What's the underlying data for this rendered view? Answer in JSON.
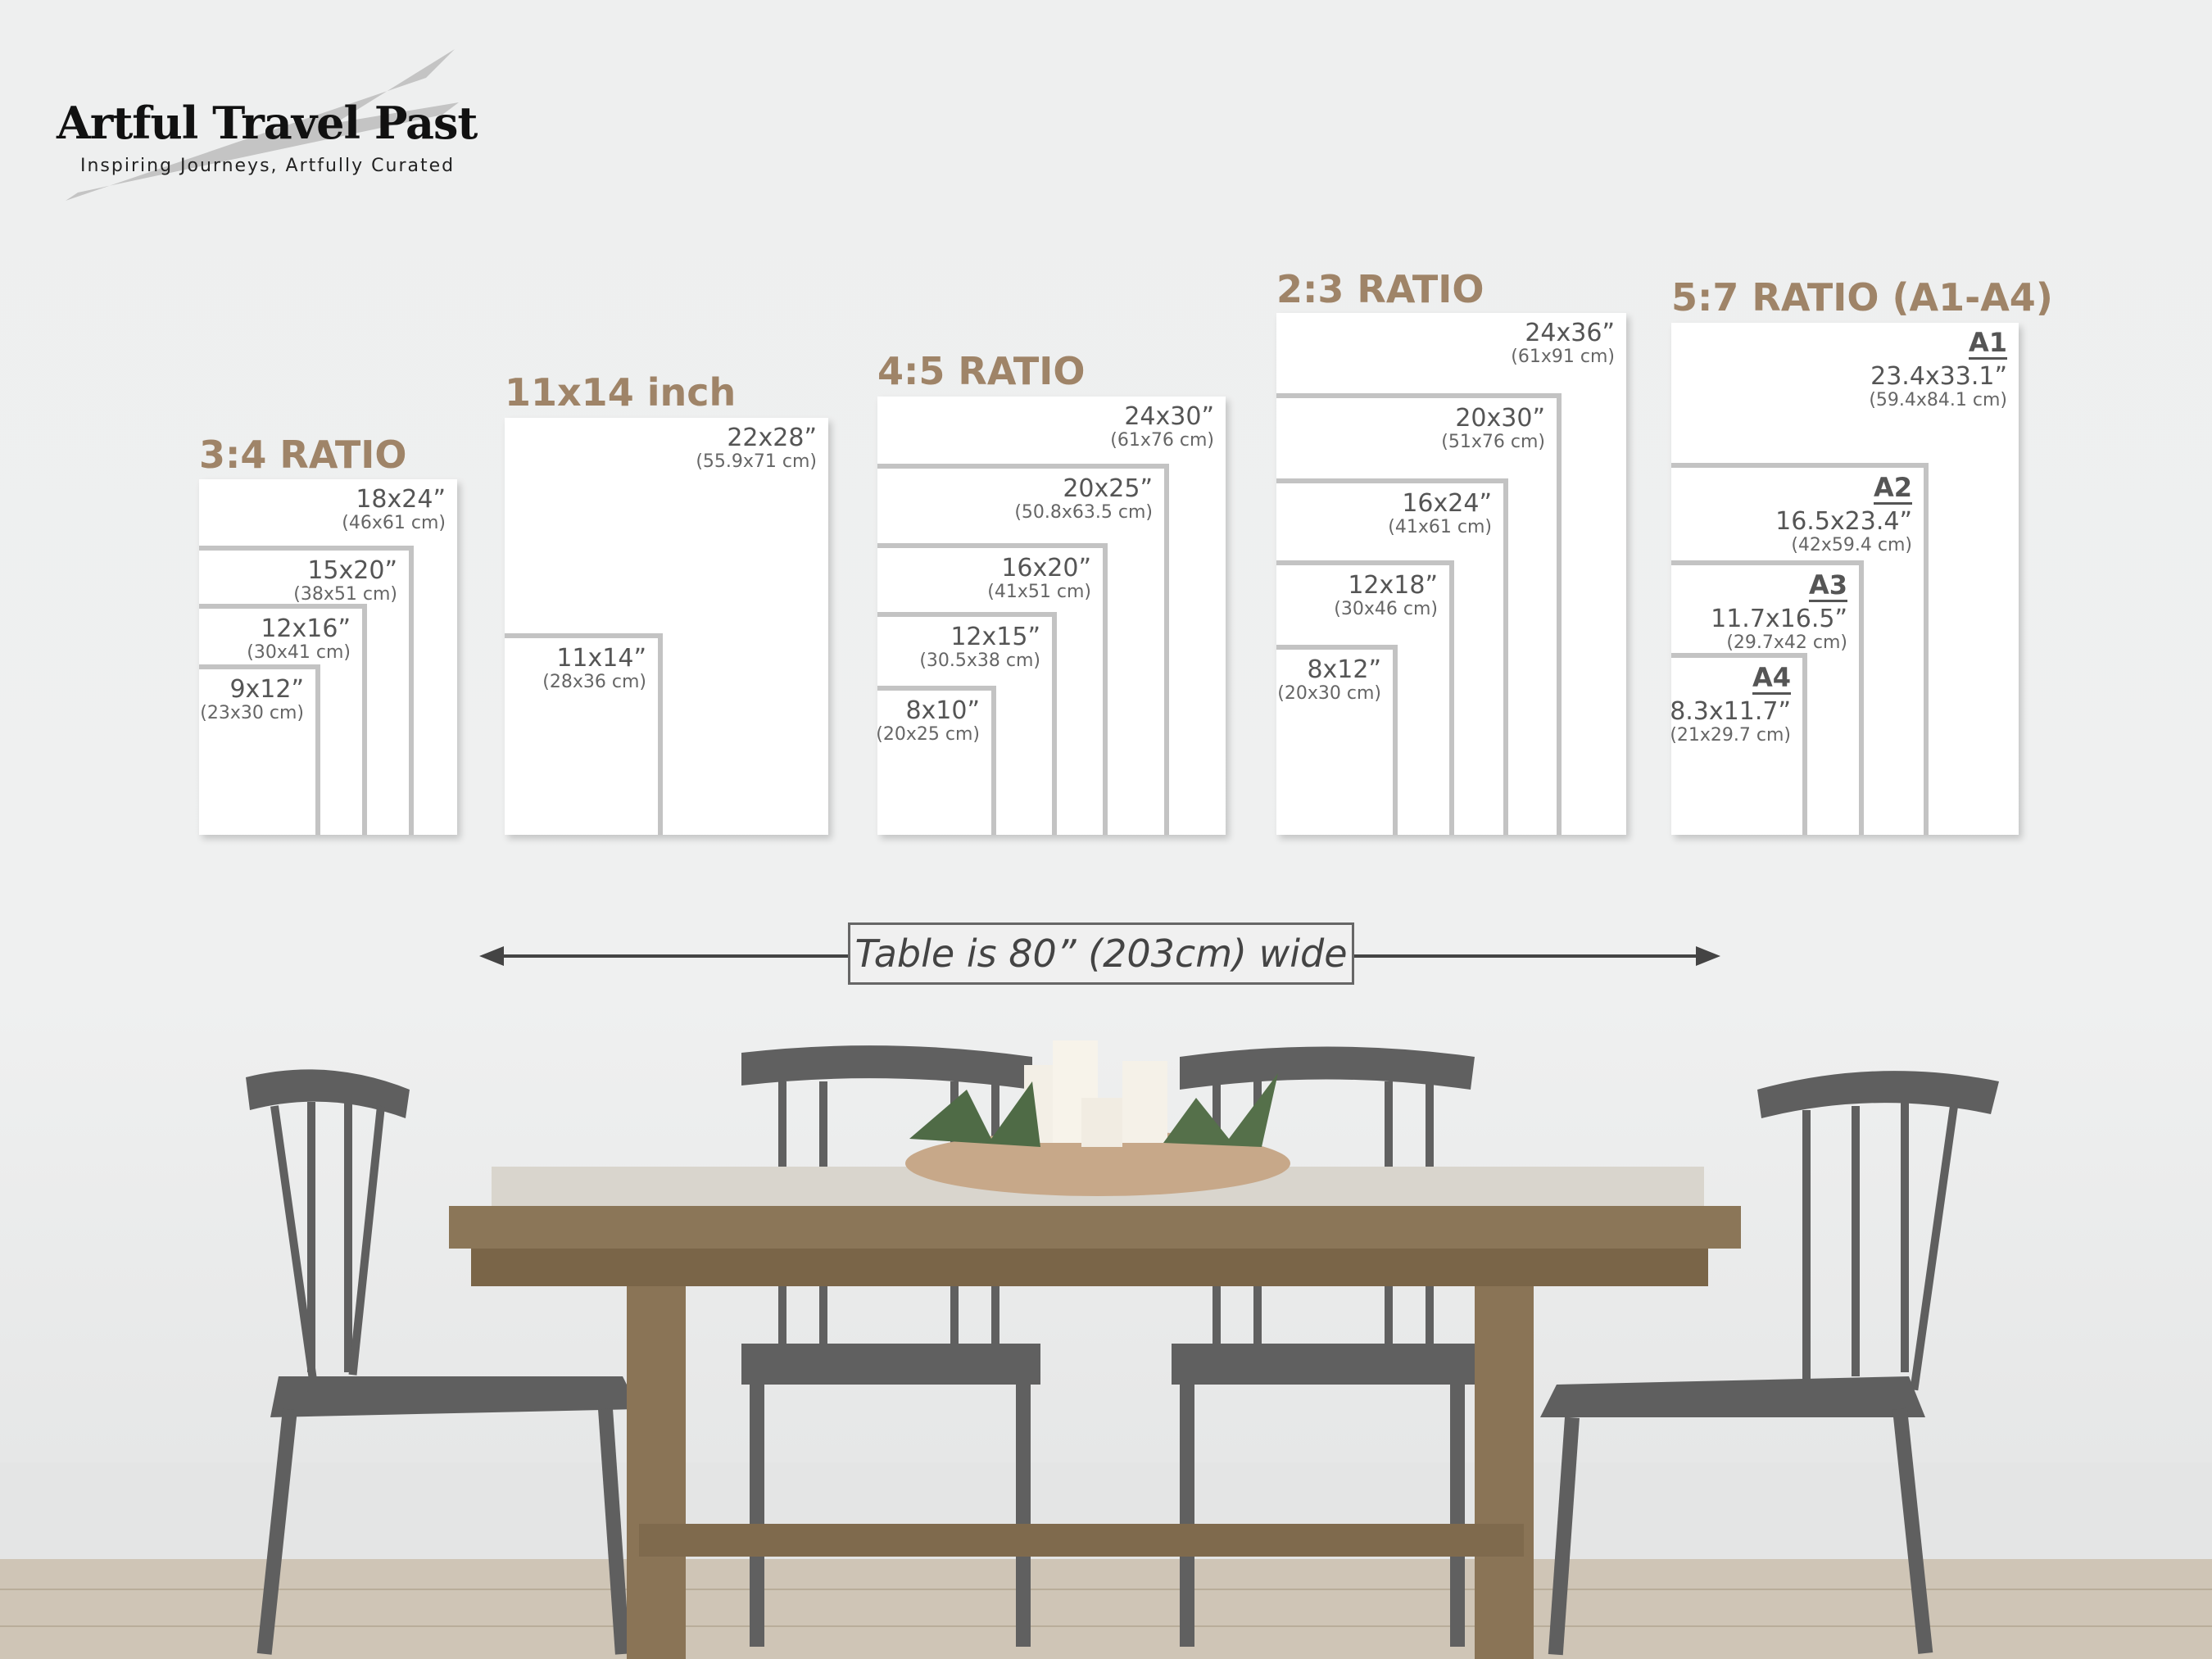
{
  "brand": {
    "name": "Artful Travel Past",
    "tagline": "Inspiring Journeys, Artfully Curated"
  },
  "panels": [
    {
      "title": "3:4 RATIO",
      "sizes": [
        {
          "in": "18x24”",
          "cm": "(46x61 cm)"
        },
        {
          "in": "15x20”",
          "cm": "(38x51 cm)"
        },
        {
          "in": "12x16”",
          "cm": "(30x41 cm)"
        },
        {
          "in": "9x12”",
          "cm": "(23x30 cm)"
        }
      ]
    },
    {
      "title": "11x14 inch",
      "sizes": [
        {
          "in": "22x28”",
          "cm": "(55.9x71 cm)"
        },
        {
          "in": "11x14”",
          "cm": "(28x36 cm)"
        }
      ]
    },
    {
      "title": "4:5 RATIO",
      "sizes": [
        {
          "in": "24x30”",
          "cm": "(61x76 cm)"
        },
        {
          "in": "20x25”",
          "cm": "(50.8x63.5 cm)"
        },
        {
          "in": "16x20”",
          "cm": "(41x51 cm)"
        },
        {
          "in": "12x15”",
          "cm": "(30.5x38 cm)"
        },
        {
          "in": "8x10”",
          "cm": "(20x25 cm)"
        }
      ]
    },
    {
      "title": "2:3 RATIO",
      "sizes": [
        {
          "in": "24x36”",
          "cm": "(61x91 cm)"
        },
        {
          "in": "20x30”",
          "cm": "(51x76 cm)"
        },
        {
          "in": "16x24”",
          "cm": "(41x61 cm)"
        },
        {
          "in": "12x18”",
          "cm": "(30x46 cm)"
        },
        {
          "in": "8x12”",
          "cm": "(20x30 cm)"
        }
      ]
    },
    {
      "title": "5:7 RATIO (A1-A4)",
      "sizes": [
        {
          "name": "A1",
          "in": "23.4x33.1”",
          "cm": "(59.4x84.1 cm)"
        },
        {
          "name": "A2",
          "in": "16.5x23.4”",
          "cm": "(42x59.4 cm)"
        },
        {
          "name": "A3",
          "in": "11.7x16.5”",
          "cm": "(29.7x42 cm)"
        },
        {
          "name": "A4",
          "in": "8.3x11.7”",
          "cm": "(21x29.7 cm)"
        }
      ]
    }
  ],
  "table_note": "Table is 80” (203cm) wide",
  "colors": {
    "ratio_title": "#9f8468",
    "frame_border": "#c3c3c3",
    "chair": "#5f5f5f",
    "table_wood": "#8a7456"
  }
}
